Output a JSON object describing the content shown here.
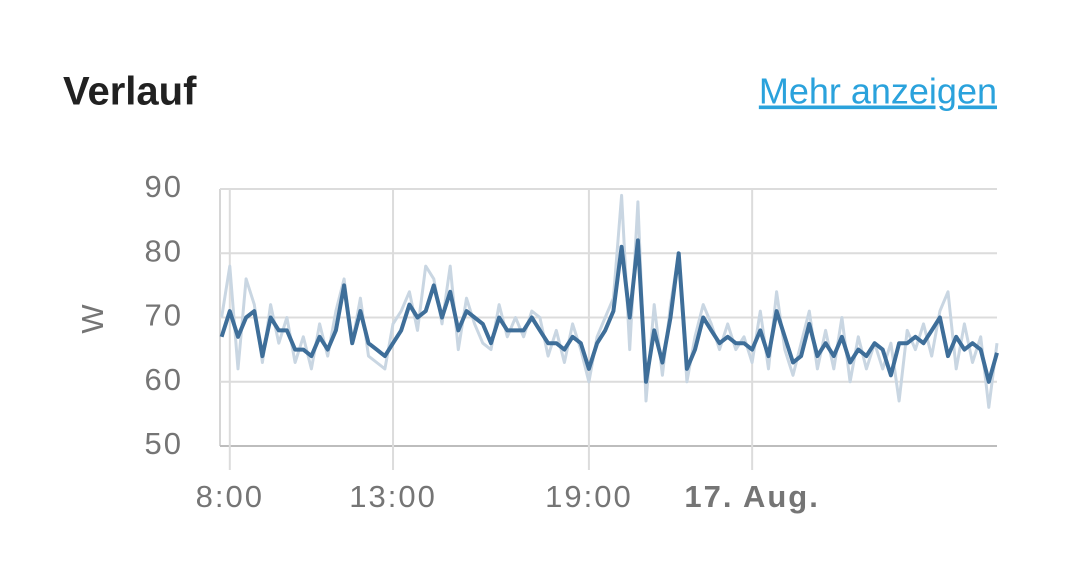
{
  "header": {
    "title": "Verlauf",
    "link": "Mehr anzeigen"
  },
  "chart_data": {
    "type": "line",
    "ylabel": "W",
    "xlim": [
      7.7,
      31.5
    ],
    "xticks": [
      {
        "value": 8,
        "label": "8:00"
      },
      {
        "value": 13,
        "label": "13:00"
      },
      {
        "value": 19,
        "label": "19:00"
      },
      {
        "value": 24,
        "label": "17. Aug."
      }
    ],
    "ylim": [
      50,
      90
    ],
    "yticks": [
      50,
      60,
      70,
      80,
      90
    ],
    "grid": true,
    "x": [
      7.75,
      8,
      8.25,
      8.5,
      8.75,
      9,
      9.25,
      9.5,
      9.75,
      10,
      10.25,
      10.5,
      10.75,
      11,
      11.25,
      11.5,
      11.75,
      12,
      12.25,
      12.5,
      12.75,
      13,
      13.25,
      13.5,
      13.75,
      14,
      14.25,
      14.5,
      14.75,
      15,
      15.25,
      15.5,
      15.75,
      16,
      16.25,
      16.5,
      16.75,
      17,
      17.25,
      17.5,
      17.75,
      18,
      18.25,
      18.5,
      18.75,
      19,
      19.25,
      19.5,
      19.75,
      20,
      20.25,
      20.5,
      20.75,
      21,
      21.25,
      21.5,
      21.75,
      22,
      22.25,
      22.5,
      22.75,
      23,
      23.25,
      23.5,
      23.75,
      24,
      24.25,
      24.5,
      24.75,
      25,
      25.25,
      25.5,
      25.75,
      26,
      26.25,
      26.5,
      26.75,
      27,
      27.25,
      27.5,
      27.75,
      28,
      28.25,
      28.5,
      28.75,
      29,
      29.25,
      29.5,
      29.75,
      30,
      30.25,
      30.5,
      30.75,
      31,
      31.25,
      31.5
    ],
    "series": [
      {
        "color": "#c9d6e2",
        "values": [
          70,
          78,
          62,
          76,
          72,
          63,
          72,
          66,
          70,
          63,
          67,
          62,
          69,
          64,
          71,
          76,
          66,
          73,
          64,
          63,
          62,
          69,
          71,
          74,
          68,
          78,
          76,
          69,
          78,
          65,
          73,
          69,
          66,
          65,
          72,
          67,
          70,
          67,
          71,
          70,
          64,
          68,
          63,
          69,
          65,
          60,
          67,
          70,
          73,
          89,
          65,
          88,
          57,
          72,
          61,
          72,
          80,
          60,
          67,
          72,
          69,
          65,
          69,
          65,
          67,
          63,
          71,
          62,
          74,
          65,
          61,
          66,
          71,
          62,
          68,
          62,
          70,
          60,
          67,
          62,
          66,
          62,
          66,
          57,
          68,
          65,
          69,
          64,
          71,
          74,
          62,
          69,
          63,
          67,
          56,
          66
        ]
      },
      {
        "color": "#3e6e99",
        "values": [
          67,
          71,
          67,
          70,
          71,
          64,
          70,
          68,
          68,
          65,
          65,
          64,
          67,
          65,
          68,
          75,
          66,
          71,
          66,
          65,
          64,
          66,
          68,
          72,
          70,
          71,
          75,
          70,
          74,
          68,
          71,
          70,
          69,
          66,
          70,
          68,
          68,
          68,
          70,
          68,
          66,
          66,
          65,
          67,
          66,
          62,
          66,
          68,
          71,
          81,
          70,
          82,
          60,
          68,
          63,
          70,
          80,
          62,
          65,
          70,
          68,
          66,
          67,
          66,
          66,
          65,
          68,
          64,
          71,
          67,
          63,
          64,
          69,
          64,
          66,
          64,
          67,
          63,
          65,
          64,
          66,
          65,
          61,
          66,
          66,
          67,
          66,
          68,
          70,
          64,
          67,
          65,
          66,
          65,
          60,
          64.5
        ]
      }
    ]
  }
}
